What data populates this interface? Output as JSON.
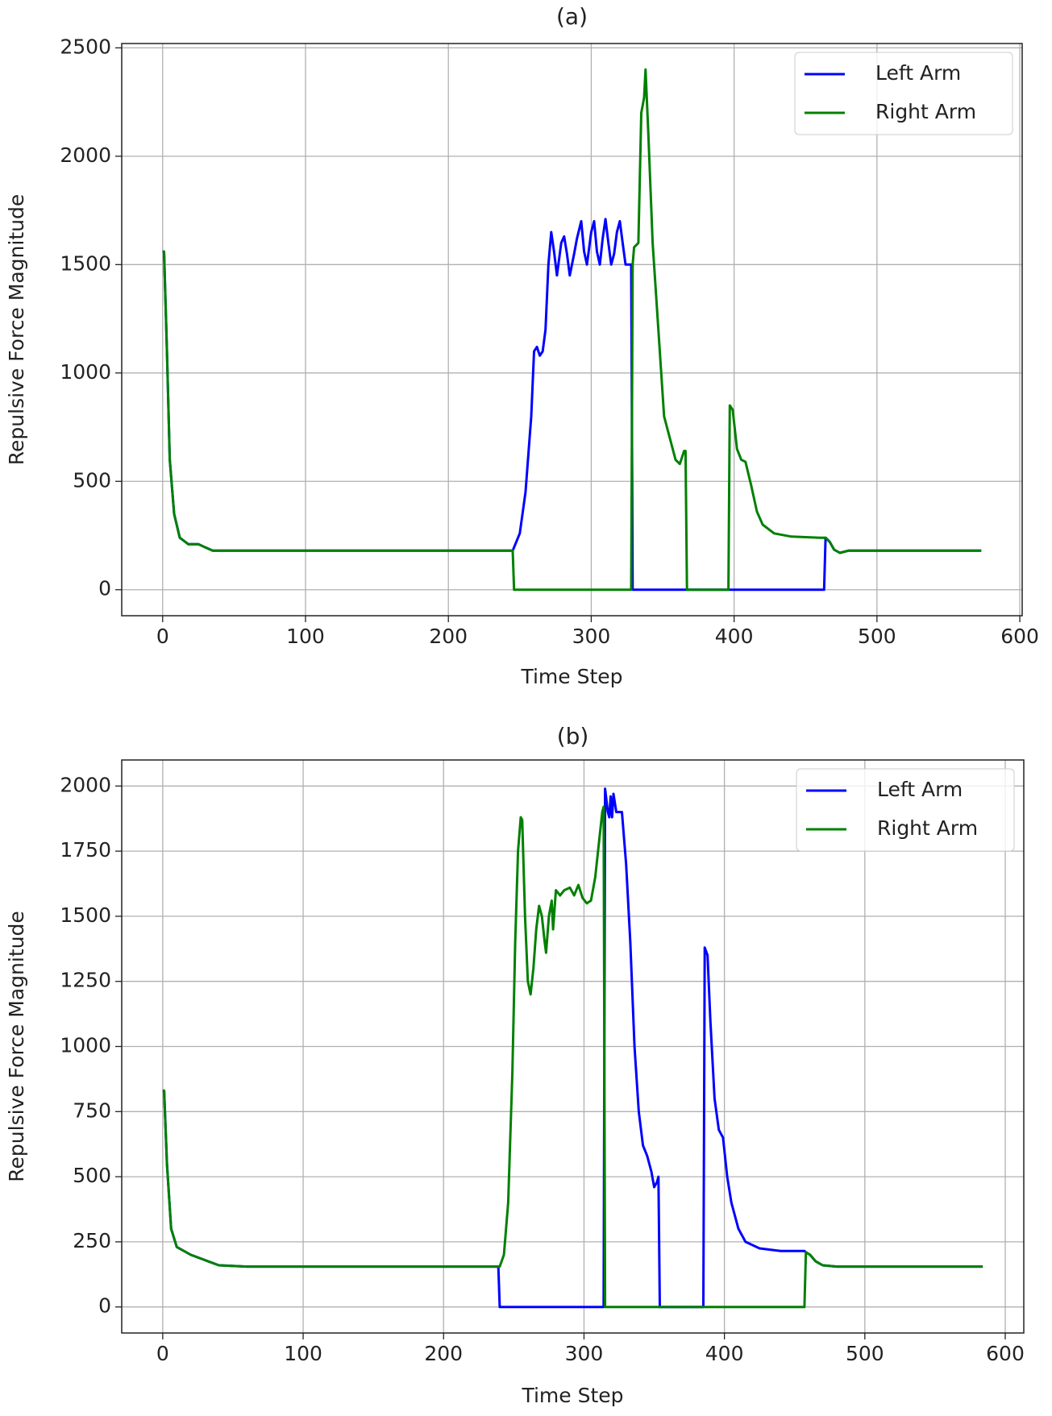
{
  "chart_data": [
    {
      "type": "line",
      "title": "(a)",
      "x_label": "Time Step",
      "y_label": "Repulsive Force Magnitude",
      "xlim": [
        -28.65,
        601.65
      ],
      "ylim": [
        -120,
        2520
      ],
      "xticks": [
        0,
        100,
        200,
        300,
        400,
        500,
        600
      ],
      "yticks": [
        0,
        500,
        1000,
        1500,
        2000,
        2500
      ],
      "grid": true,
      "legend": "upper right",
      "series": [
        {
          "name": "Left Arm",
          "color": "#0000ff",
          "x": [
            0,
            1,
            3,
            5,
            8,
            12,
            18,
            25,
            30,
            35,
            50,
            245,
            250,
            254,
            258,
            260,
            262,
            264,
            266,
            268,
            270,
            272,
            274,
            276,
            279,
            281,
            283,
            285,
            288,
            290,
            293,
            295,
            297,
            300,
            302,
            304,
            306,
            308,
            310,
            312,
            314,
            316,
            318,
            320,
            322,
            324,
            326,
            328,
            329,
            463,
            464,
            467,
            470,
            474,
            480,
            490,
            573
          ],
          "values": [
            1560,
            1560,
            1100,
            600,
            350,
            240,
            210,
            210,
            195,
            180,
            180,
            180,
            260,
            450,
            800,
            1100,
            1120,
            1080,
            1100,
            1200,
            1500,
            1650,
            1560,
            1450,
            1600,
            1630,
            1550,
            1450,
            1550,
            1620,
            1700,
            1560,
            1500,
            1650,
            1700,
            1560,
            1500,
            1620,
            1710,
            1600,
            1500,
            1550,
            1650,
            1700,
            1600,
            1500,
            1500,
            1500,
            0,
            0,
            240,
            220,
            185,
            170,
            180,
            180,
            180
          ]
        },
        {
          "name": "Right Arm",
          "color": "#008000",
          "x": [
            0,
            1,
            3,
            5,
            8,
            12,
            18,
            25,
            30,
            35,
            50,
            245,
            246,
            328,
            329,
            330,
            333,
            335,
            337,
            338,
            340,
            343,
            347,
            351,
            355,
            359,
            362,
            365,
            366,
            367,
            396,
            397,
            399,
            402,
            405,
            408,
            412,
            416,
            420,
            428,
            440,
            460,
            464,
            467,
            470,
            474,
            480,
            490,
            573
          ],
          "values": [
            1560,
            1560,
            1100,
            600,
            350,
            240,
            210,
            210,
            195,
            180,
            180,
            180,
            0,
            0,
            1500,
            1580,
            1600,
            2200,
            2270,
            2400,
            2100,
            1600,
            1200,
            800,
            700,
            600,
            580,
            640,
            640,
            0,
            0,
            850,
            830,
            650,
            600,
            590,
            480,
            360,
            300,
            260,
            245,
            240,
            240,
            220,
            185,
            170,
            180,
            180,
            180
          ]
        }
      ]
    },
    {
      "type": "line",
      "title": "(b)",
      "x_label": "Time Step",
      "y_label": "Repulsive Force Magnitude",
      "xlim": [
        -29.2,
        613.2
      ],
      "ylim": [
        -100,
        2100
      ],
      "xticks": [
        0,
        100,
        200,
        300,
        400,
        500,
        600
      ],
      "yticks": [
        0,
        250,
        500,
        750,
        1000,
        1250,
        1500,
        1750,
        2000
      ],
      "grid": true,
      "legend": "upper right",
      "series": [
        {
          "name": "Left Arm",
          "color": "#0000ff",
          "x": [
            0,
            1,
            3,
            6,
            10,
            20,
            30,
            40,
            60,
            239,
            240,
            314,
            315,
            317,
            318,
            319,
            320,
            321,
            323,
            327,
            330,
            333,
            336,
            339,
            342,
            345,
            348,
            350,
            352,
            353,
            354,
            385,
            386,
            388,
            390,
            393,
            396,
            399,
            402,
            405,
            410,
            415,
            425,
            440,
            457,
            458,
            461,
            465,
            470,
            480,
            584
          ],
          "values": [
            830,
            830,
            550,
            300,
            230,
            200,
            180,
            160,
            155,
            155,
            0,
            0,
            1990,
            1900,
            1880,
            1960,
            1880,
            1970,
            1900,
            1900,
            1700,
            1400,
            1000,
            750,
            620,
            580,
            520,
            460,
            480,
            500,
            0,
            0,
            1380,
            1350,
            1100,
            800,
            680,
            650,
            500,
            400,
            300,
            250,
            225,
            215,
            215,
            210,
            200,
            175,
            160,
            155,
            155
          ]
        },
        {
          "name": "Right Arm",
          "color": "#008000",
          "x": [
            0,
            1,
            3,
            6,
            10,
            20,
            30,
            40,
            60,
            240,
            243,
            246,
            249,
            251,
            253,
            255,
            256,
            258,
            260,
            262,
            264,
            266,
            268,
            270,
            272,
            273,
            275,
            277,
            278,
            280,
            283,
            286,
            290,
            293,
            296,
            299,
            302,
            305,
            308,
            311,
            313,
            314,
            315,
            457,
            458,
            461,
            465,
            470,
            480,
            584
          ],
          "values": [
            830,
            830,
            550,
            300,
            230,
            200,
            180,
            160,
            155,
            155,
            200,
            400,
            900,
            1400,
            1750,
            1880,
            1870,
            1500,
            1250,
            1200,
            1300,
            1450,
            1540,
            1500,
            1400,
            1360,
            1500,
            1560,
            1450,
            1600,
            1580,
            1600,
            1610,
            1580,
            1620,
            1570,
            1550,
            1560,
            1650,
            1800,
            1900,
            1920,
            0,
            0,
            210,
            200,
            175,
            160,
            155,
            155
          ]
        }
      ]
    }
  ]
}
